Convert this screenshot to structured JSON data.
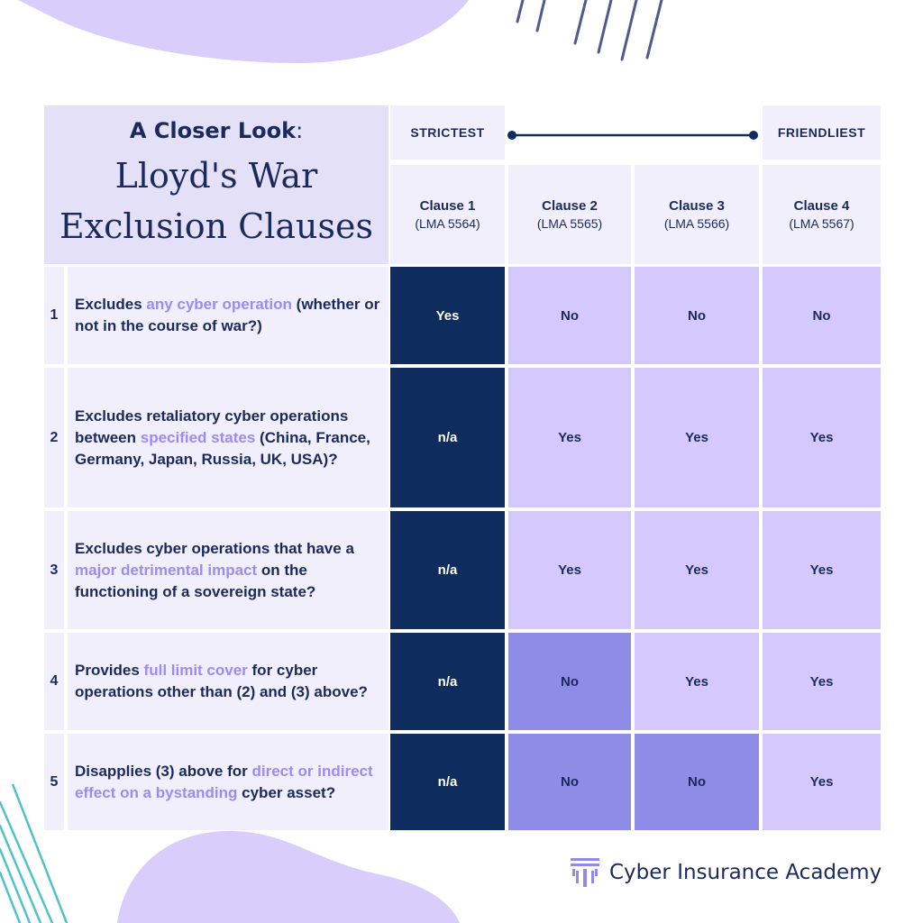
{
  "header": {
    "title_line1": "A Closer Look",
    "title_colon": ":",
    "title_line2": "Lloyd's War",
    "title_line3": "Exclusion Clauses"
  },
  "scale": {
    "left_label": "STRICTEST",
    "right_label": "FRIENDLIEST"
  },
  "clauses": [
    {
      "name": "Clause 1",
      "code": "(LMA 5564)"
    },
    {
      "name": "Clause 2",
      "code": "(LMA 5565)"
    },
    {
      "name": "Clause 3",
      "code": "(LMA 5566)"
    },
    {
      "name": "Clause 4",
      "code": "(LMA 5567)"
    }
  ],
  "rows": [
    {
      "num": "1",
      "q": [
        {
          "t": "Excludes ",
          "h": false
        },
        {
          "t": "any cyber operation",
          "h": true
        },
        {
          "t": " (whether or not in the course of war?)",
          "h": false
        }
      ],
      "answers": [
        "Yes",
        "No",
        "No",
        "No"
      ]
    },
    {
      "num": "2",
      "q": [
        {
          "t": "Excludes retaliatory cyber operations between ",
          "h": false
        },
        {
          "t": "specified states",
          "h": true
        },
        {
          "t": " (China, France, Germany, Japan, Russia, UK, USA)?",
          "h": false
        }
      ],
      "answers": [
        "n/a",
        "Yes",
        "Yes",
        "Yes"
      ]
    },
    {
      "num": "3",
      "q": [
        {
          "t": "Excludes cyber operations that have a ",
          "h": false
        },
        {
          "t": "major detrimental impact",
          "h": true
        },
        {
          "t": " on the functioning of a sovereign state?",
          "h": false
        }
      ],
      "answers": [
        "n/a",
        "Yes",
        "Yes",
        "Yes"
      ]
    },
    {
      "num": "4",
      "q": [
        {
          "t": "Provides ",
          "h": false
        },
        {
          "t": "full limit cover",
          "h": true
        },
        {
          "t": " for cyber operations other than (2) and (3) above?",
          "h": false
        }
      ],
      "answers": [
        "n/a",
        "No",
        "Yes",
        "Yes"
      ]
    },
    {
      "num": "5",
      "q": [
        {
          "t": "Disapplies (3) above for ",
          "h": false
        },
        {
          "t": "direct or indirect effect on a bystanding",
          "h": true
        },
        {
          "t": " cyber asset?",
          "h": false
        }
      ],
      "answers": [
        "n/a",
        "No",
        "No",
        "Yes"
      ]
    }
  ],
  "brand": {
    "name": "Cyber Insurance Academy",
    "icon": "academy-logo-icon"
  },
  "colors": {
    "dark": "#0f2c5f",
    "light": "#d5c8fc",
    "mid": "#8f8ce7",
    "highlight": "#9b8cf0",
    "panel": "#f1effb",
    "title_panel": "#e4e0f8"
  }
}
